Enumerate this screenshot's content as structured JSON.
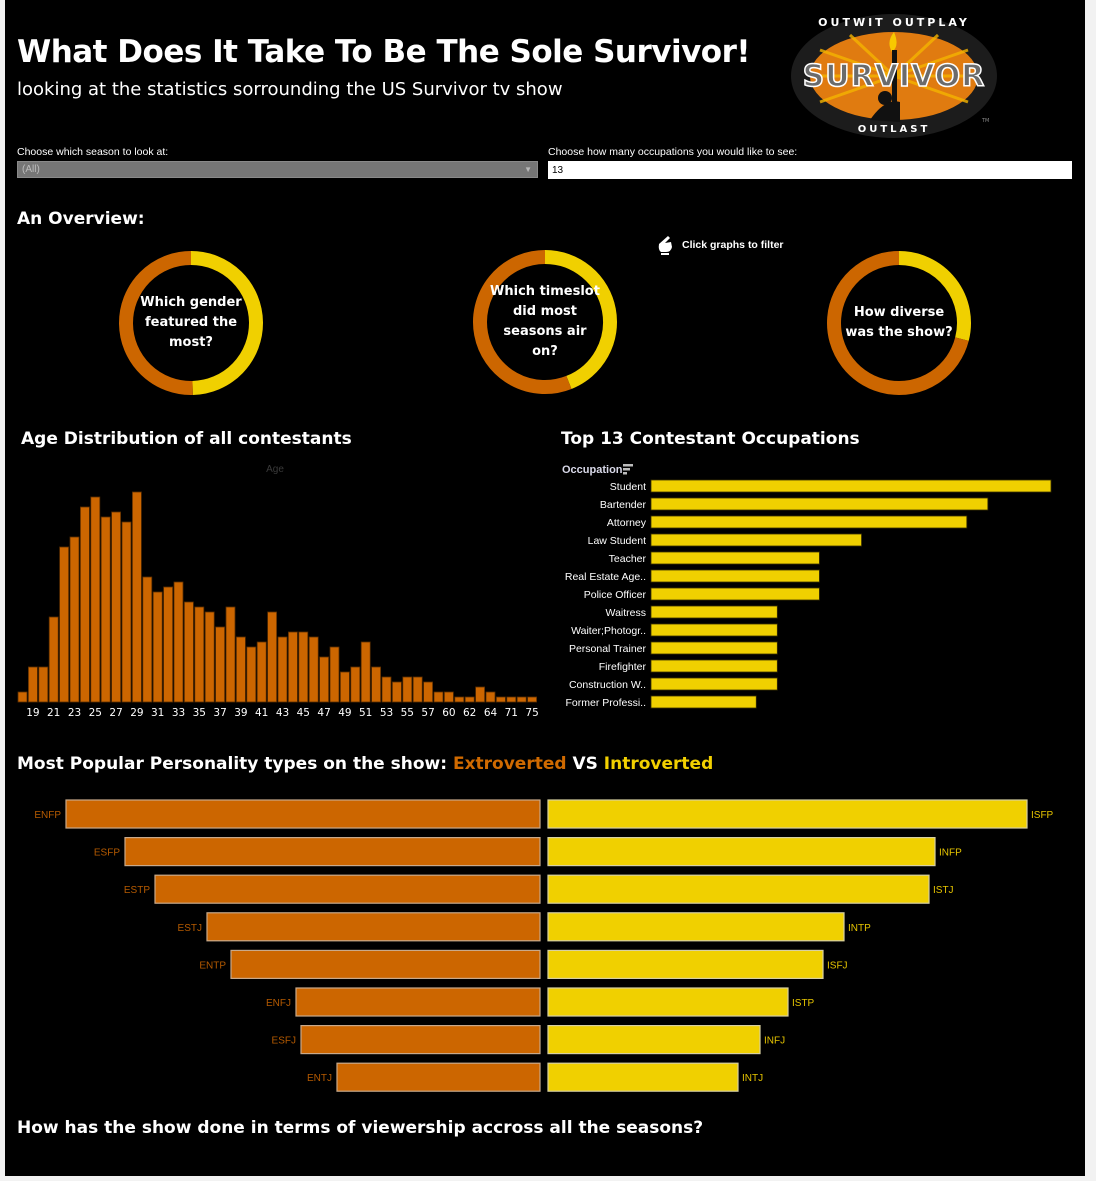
{
  "header": {
    "title": "What Does It Take To Be The Sole Survivor!",
    "subtitle": "looking at the statistics sorrounding the US Survivor tv show"
  },
  "logo": {
    "top_text": "OUTWIT OUTPLAY",
    "main_text": "SURVIVOR",
    "bottom_text": "OUTLAST",
    "tm": "TM",
    "icon": "survivor-logo-icon"
  },
  "filters": {
    "season_label": "Choose which season to look at:",
    "season_value": "(All)",
    "occupation_label": "Choose how many occupations you would like to see:",
    "occupation_value": "13"
  },
  "overview": {
    "title": "An Overview:",
    "hint": "Click graphs to filter",
    "hint_icon": "pointing-hand-icon"
  },
  "colors": {
    "orange": "#cc6600",
    "yellow": "#f0d000",
    "background": "#000000"
  },
  "age_section": {
    "title": "Age Distribution of all contestants"
  },
  "occupation_section": {
    "title": "Top 13 Contestant Occupations"
  },
  "personality_section": {
    "title_prefix": "Most Popular Personality types on the show: ",
    "extroverted": "Extroverted",
    "vs": " VS ",
    "introverted": "Introverted"
  },
  "viewership_section": {
    "title": "How has the show done in terms of viewership accross all the seasons?"
  },
  "chart_data": [
    {
      "type": "pie",
      "name": "gender",
      "question": "Which gender featured the most?",
      "slices": [
        {
          "label": "yellow segment",
          "value": 49.6,
          "color": "#f0d000"
        },
        {
          "label": "orange segment",
          "value": 50.4,
          "color": "#cc6600"
        }
      ]
    },
    {
      "type": "pie",
      "name": "timeslot",
      "question": "Which timeslot did most seasons air on?",
      "slices": [
        {
          "label": "yellow segment",
          "value": 44,
          "color": "#f0d000"
        },
        {
          "label": "orange segment",
          "value": 56,
          "color": "#cc6600"
        }
      ]
    },
    {
      "type": "pie",
      "name": "diversity",
      "question": "How diverse was the show?",
      "slices": [
        {
          "label": "yellow segment",
          "value": 29,
          "color": "#f0d000"
        },
        {
          "label": "orange segment",
          "value": 71,
          "color": "#cc6600"
        }
      ]
    },
    {
      "type": "bar",
      "name": "age_distribution",
      "title": "Age Distribution of all contestants",
      "xlabel": "Age",
      "ylabel": "",
      "categories": [
        "18",
        "19",
        "20",
        "21",
        "22",
        "23",
        "24",
        "25",
        "26",
        "27",
        "28",
        "29",
        "30",
        "31",
        "32",
        "33",
        "34",
        "35",
        "36",
        "37",
        "38",
        "39",
        "40",
        "41",
        "42",
        "43",
        "44",
        "45",
        "46",
        "47",
        "48",
        "49",
        "50",
        "51",
        "52",
        "53",
        "54",
        "55",
        "56",
        "57",
        "58",
        "60",
        "61",
        "62",
        "63",
        "64",
        "65",
        "71",
        "72",
        "75"
      ],
      "tick_labels": [
        "19",
        "21",
        "23",
        "25",
        "27",
        "29",
        "31",
        "33",
        "35",
        "37",
        "39",
        "41",
        "43",
        "45",
        "47",
        "49",
        "51",
        "53",
        "55",
        "57",
        "60",
        "62",
        "64",
        "71",
        "75"
      ],
      "values": [
        2,
        7,
        7,
        17,
        31,
        33,
        39,
        41,
        37,
        38,
        36,
        42,
        25,
        22,
        23,
        24,
        20,
        19,
        18,
        15,
        19,
        13,
        11,
        12,
        18,
        13,
        14,
        14,
        13,
        9,
        11,
        6,
        7,
        12,
        7,
        5,
        4,
        5,
        5,
        4,
        2,
        2,
        1,
        1,
        3,
        2,
        1,
        1,
        1,
        1
      ],
      "ylim": [
        0,
        42
      ],
      "color": "#cc6600"
    },
    {
      "type": "bar",
      "name": "occupations",
      "orientation": "horizontal",
      "title": "Top 13 Contestant Occupations",
      "ylabel": "Occupation",
      "categories": [
        "Student",
        "Bartender",
        "Attorney",
        "Law Student",
        "Teacher",
        "Real Estate Age..",
        "Police Officer",
        "Waitress",
        "Waiter;Photogr..",
        "Personal Trainer",
        "Firefighter",
        "Construction W..",
        "Former Professi.."
      ],
      "values": [
        19,
        16,
        15,
        10,
        8,
        8,
        8,
        6,
        6,
        6,
        6,
        6,
        5
      ],
      "xlim": [
        0,
        19
      ],
      "color": "#f0d000"
    },
    {
      "type": "bar",
      "name": "personality",
      "orientation": "horizontal-diverging",
      "title": "Most Popular Personality types on the show: Extroverted VS Introverted",
      "series": [
        {
          "name": "Extroverted",
          "color": "#cc6600",
          "categories": [
            "ENFP",
            "ESFP",
            "ESTP",
            "ESTJ",
            "ENTP",
            "ENFJ",
            "ESFJ",
            "ENTJ"
          ],
          "values": [
            474,
            415,
            385,
            333,
            309,
            244,
            239,
            203
          ]
        },
        {
          "name": "Introverted",
          "color": "#f0d000",
          "categories": [
            "ISFP",
            "INFP",
            "ISTJ",
            "INTP",
            "ISFJ",
            "ISTP",
            "INFJ",
            "INTJ"
          ],
          "values": [
            479,
            387,
            381,
            296,
            275,
            240,
            212,
            190
          ]
        }
      ],
      "units": "relative",
      "xlim": [
        0,
        480
      ]
    }
  ]
}
